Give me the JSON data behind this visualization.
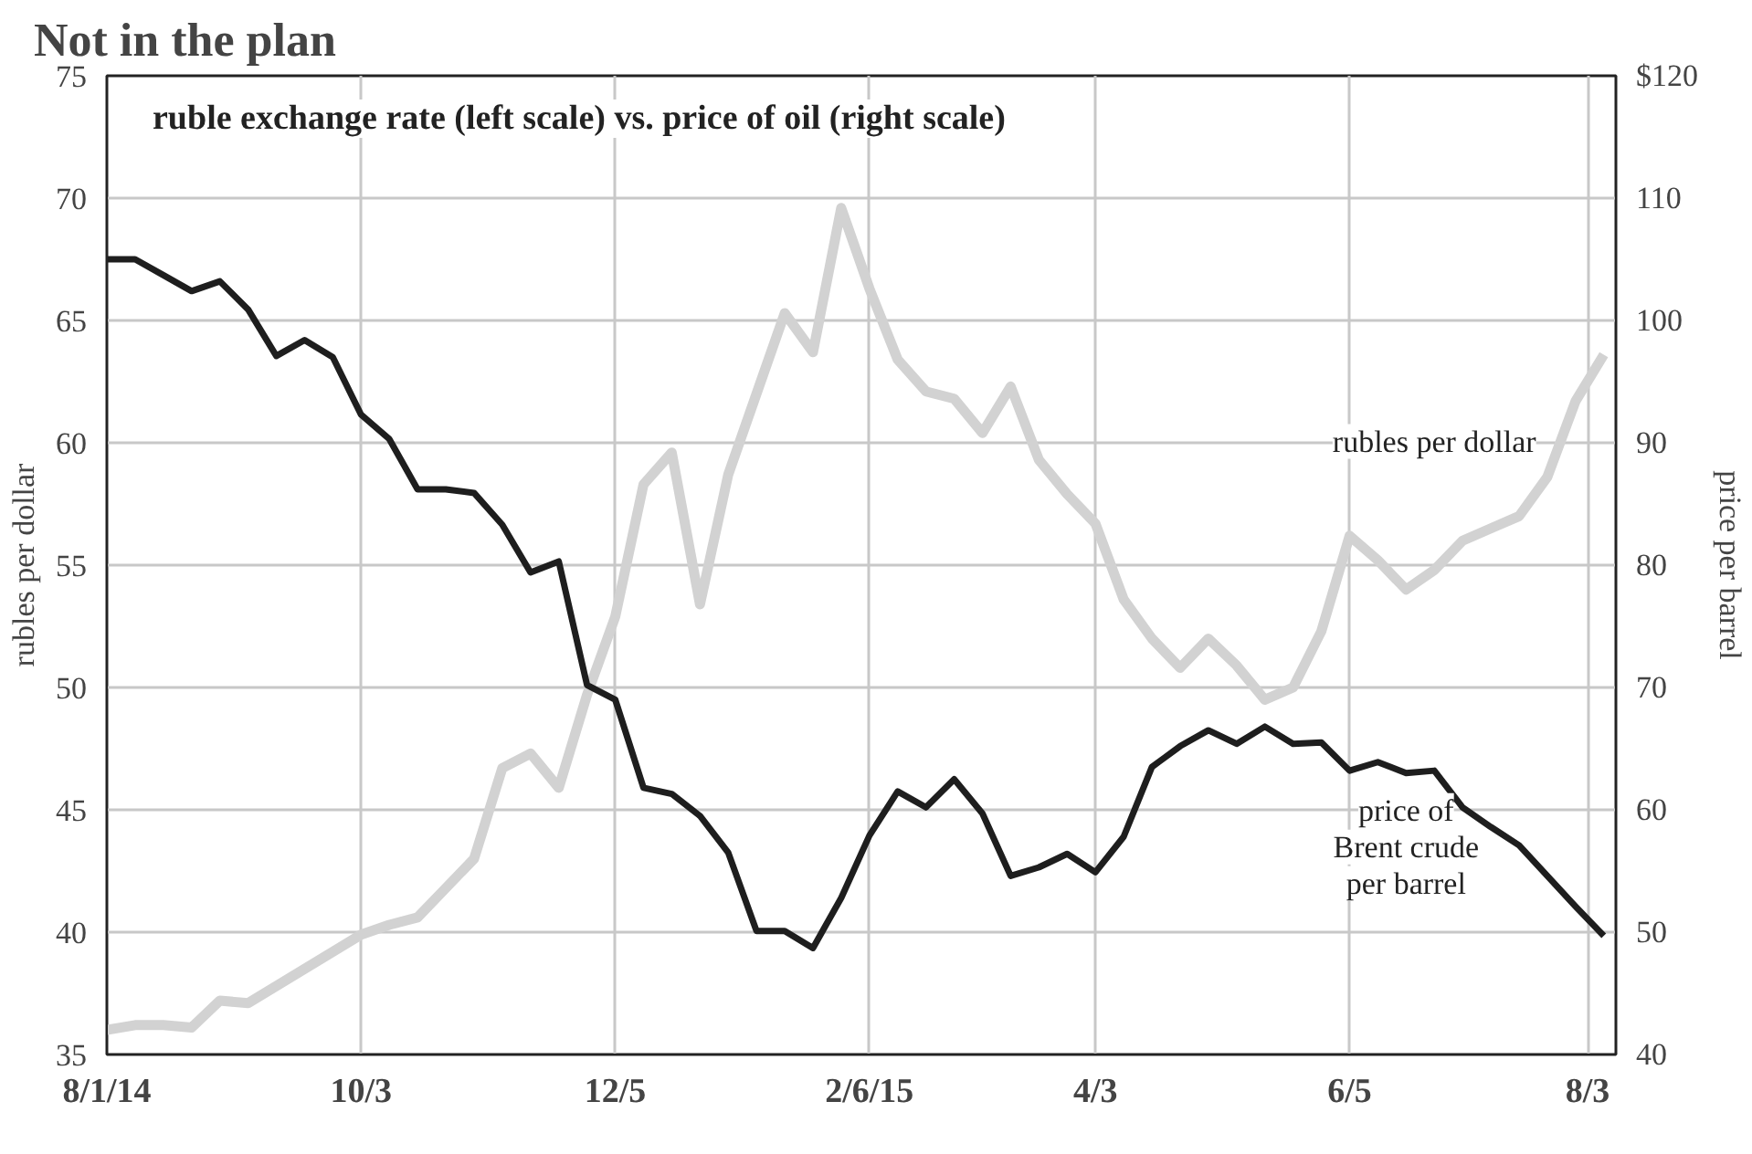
{
  "chart_data": {
    "type": "line",
    "title": "Not in the plan",
    "subtitle": "ruble exchange rate (left scale) vs. price of oil (right scale)",
    "ylabel": "rubles per dollar",
    "y2label": "price per barrel",
    "x": [
      "2014-08-01",
      "2014-08-08",
      "2014-08-15",
      "2014-08-22",
      "2014-08-29",
      "2014-09-05",
      "2014-09-12",
      "2014-09-19",
      "2014-09-26",
      "2014-10-03",
      "2014-10-10",
      "2014-10-17",
      "2014-10-24",
      "2014-10-31",
      "2014-11-07",
      "2014-11-14",
      "2014-11-21",
      "2014-11-28",
      "2014-12-05",
      "2014-12-12",
      "2014-12-19",
      "2014-12-26",
      "2015-01-02",
      "2015-01-09",
      "2015-01-16",
      "2015-01-23",
      "2015-01-30",
      "2015-02-06",
      "2015-02-13",
      "2015-02-20",
      "2015-02-27",
      "2015-03-06",
      "2015-03-13",
      "2015-03-20",
      "2015-03-27",
      "2015-04-03",
      "2015-04-10",
      "2015-04-17",
      "2015-04-24",
      "2015-05-01",
      "2015-05-08",
      "2015-05-15",
      "2015-05-22",
      "2015-05-29",
      "2015-06-05",
      "2015-06-12",
      "2015-06-19",
      "2015-06-26",
      "2015-07-03",
      "2015-07-10",
      "2015-07-17",
      "2015-07-24",
      "2015-07-31",
      "2015-08-07"
    ],
    "series": [
      {
        "name": "rubles per dollar",
        "color": "#d2d2d2",
        "values": [
          36.0,
          36.2,
          36.2,
          36.1,
          37.2,
          37.1,
          37.8,
          38.5,
          39.2,
          39.9,
          40.3,
          40.6,
          41.8,
          43.0,
          46.7,
          47.3,
          45.9,
          49.7,
          52.9,
          58.3,
          59.6,
          53.4,
          58.7,
          62.0,
          65.3,
          63.7,
          69.6,
          66.3,
          63.4,
          62.1,
          61.8,
          60.4,
          62.3,
          59.3,
          57.9,
          56.7,
          53.6,
          52.0,
          50.8,
          52.0,
          50.9,
          49.5,
          50.0,
          52.3,
          56.2,
          55.2,
          54.0,
          54.8,
          56.0,
          56.5,
          57.0,
          58.6,
          61.7,
          63.6
        ]
      },
      {
        "name": "price of Brent crude per barrel",
        "color": "#1e1e1e",
        "axis": "y2",
        "values": [
          105.0,
          105.0,
          103.7,
          102.4,
          103.2,
          100.9,
          97.1,
          98.4,
          97.0,
          92.3,
          90.3,
          86.2,
          86.2,
          85.9,
          83.3,
          79.4,
          80.3,
          70.2,
          69.0,
          61.8,
          61.3,
          59.5,
          56.5,
          50.1,
          50.1,
          48.7,
          52.8,
          57.9,
          61.5,
          60.2,
          62.5,
          59.7,
          54.6,
          55.3,
          56.4,
          54.9,
          57.8,
          63.5,
          65.2,
          66.5,
          65.4,
          66.8,
          65.4,
          65.5,
          63.2,
          63.9,
          63.0,
          63.2,
          60.2,
          58.6,
          57.1,
          54.6,
          52.1,
          49.7
        ]
      }
    ],
    "xlim": [
      "2014-08-01",
      "2015-08-10"
    ],
    "xticks": [
      {
        "value": "2014-08-01",
        "label": "8/1/14"
      },
      {
        "value": "2014-10-03",
        "label": "10/3"
      },
      {
        "value": "2014-12-05",
        "label": "12/5"
      },
      {
        "value": "2015-02-06",
        "label": "2/6/15"
      },
      {
        "value": "2015-04-03",
        "label": "4/3"
      },
      {
        "value": "2015-06-05",
        "label": "6/5"
      },
      {
        "value": "2015-08-03",
        "label": "8/3"
      }
    ],
    "ylim": [
      35,
      75
    ],
    "yticks": [
      35,
      40,
      45,
      50,
      55,
      60,
      65,
      70,
      75
    ],
    "y2lim": [
      40,
      120
    ],
    "y2ticks": [
      40,
      50,
      60,
      70,
      80,
      90,
      100,
      110,
      {
        "value": 120,
        "label": "$120"
      }
    ],
    "grid": true,
    "line_style": "solid"
  }
}
